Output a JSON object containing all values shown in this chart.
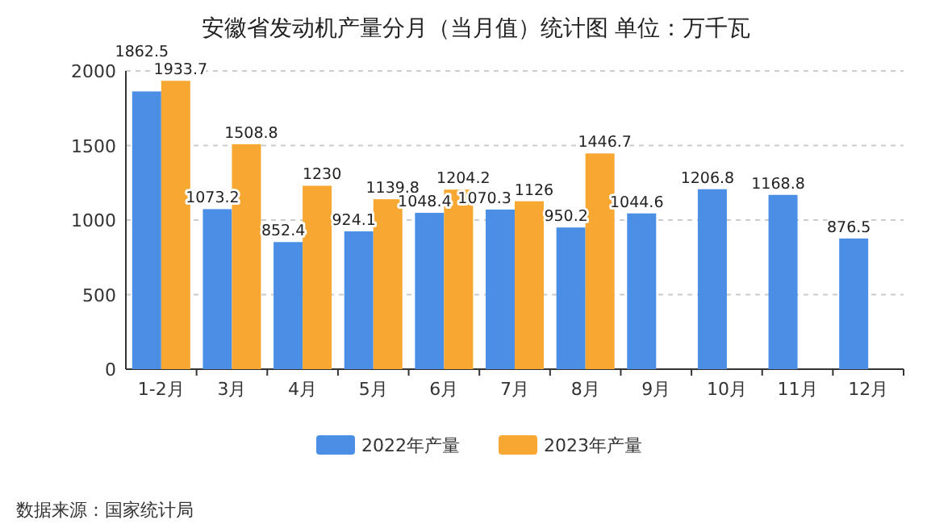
{
  "chart_data": {
    "type": "bar",
    "title": "安徽省发动机产量分月（当月值）统计图 单位：万千瓦",
    "categories": [
      "1-2月",
      "3月",
      "4月",
      "5月",
      "6月",
      "7月",
      "8月",
      "9月",
      "10月",
      "11月",
      "12月"
    ],
    "series": [
      {
        "name": "2022年产量",
        "color": "#4a8ee6",
        "values": [
          1862.5,
          1073.2,
          852.4,
          924.1,
          1048.4,
          1070.3,
          950.2,
          1044.6,
          1206.8,
          1168.8,
          876.5
        ]
      },
      {
        "name": "2023年产量",
        "color": "#f6a832",
        "values": [
          1933.7,
          1508.8,
          1230,
          1139.8,
          1204.2,
          1126,
          1446.7,
          null,
          null,
          null,
          null
        ]
      }
    ],
    "ylim": [
      0,
      2000
    ],
    "yticks": [
      0,
      500,
      1000,
      1500,
      2000
    ],
    "grid": "y",
    "legend": "bottom",
    "data_labels": true,
    "annotations": [
      "数据来源：国家统计局"
    ]
  }
}
